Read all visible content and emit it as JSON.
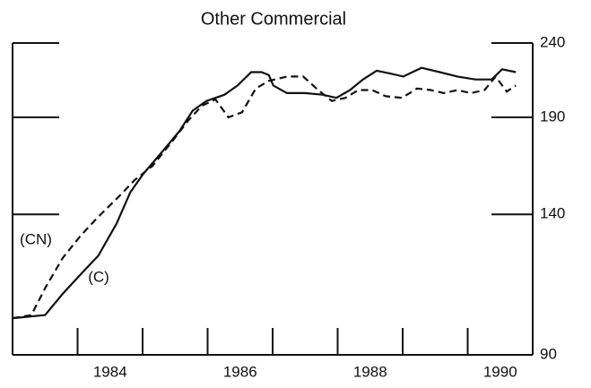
{
  "chart_data": {
    "type": "line",
    "title": "Other Commercial",
    "log_y": true,
    "xlim": [
      1983,
      1991
    ],
    "ylim": [
      90,
      240
    ],
    "yticks": [
      90,
      140,
      190,
      240
    ],
    "xticks": [
      {
        "value": 1984.5,
        "label": "1984"
      },
      {
        "value": 1986.5,
        "label": "1986"
      },
      {
        "value": 1988.5,
        "label": "1988"
      },
      {
        "value": 1990.5,
        "label": "1990"
      }
    ],
    "xtick_marks": [
      1984,
      1985,
      1986,
      1987,
      1988,
      1989,
      1990
    ],
    "series": [
      {
        "name": "(C)",
        "color": "#111111",
        "dash": false,
        "x": [
          1983.0,
          1983.5,
          1983.77,
          1984.05,
          1984.32,
          1984.6,
          1984.81,
          1985.01,
          1985.29,
          1985.57,
          1985.77,
          1985.98,
          1986.26,
          1986.46,
          1986.67,
          1986.83,
          1986.94,
          1987.01,
          1987.22,
          1987.5,
          1987.77,
          1987.98,
          1988.19,
          1988.39,
          1988.6,
          1988.81,
          1989.01,
          1989.29,
          1989.57,
          1989.84,
          1990.12,
          1990.37,
          1990.53,
          1990.74
        ],
        "values": [
          101,
          102,
          109,
          116,
          123,
          136,
          150,
          159,
          170,
          182,
          194,
          200,
          204,
          210,
          219,
          219,
          217,
          210,
          205,
          205,
          204,
          202,
          207,
          214,
          220,
          218,
          216,
          222,
          219,
          216,
          214,
          214,
          221,
          219
        ]
      },
      {
        "name": "(CN)",
        "color": "#111111",
        "dash": true,
        "x": [
          1983.0,
          1983.29,
          1983.5,
          1983.77,
          1984.05,
          1984.32,
          1984.6,
          1984.88,
          1985.15,
          1985.43,
          1985.7,
          1985.91,
          1986.12,
          1986.32,
          1986.53,
          1986.74,
          1986.94,
          1987.22,
          1987.47,
          1987.7,
          1987.91,
          1988.12,
          1988.32,
          1988.53,
          1988.74,
          1988.99,
          1989.22,
          1989.43,
          1989.63,
          1989.84,
          1990.05,
          1990.26,
          1990.43,
          1990.6,
          1990.74
        ],
        "values": [
          101,
          102,
          111,
          122,
          131,
          139,
          147,
          156,
          163,
          175,
          188,
          197,
          201,
          190,
          193,
          208,
          213,
          216,
          216,
          207,
          200,
          202,
          207,
          207,
          203,
          202,
          208,
          207,
          205,
          207,
          205,
          207,
          216,
          206,
          210
        ]
      }
    ]
  }
}
